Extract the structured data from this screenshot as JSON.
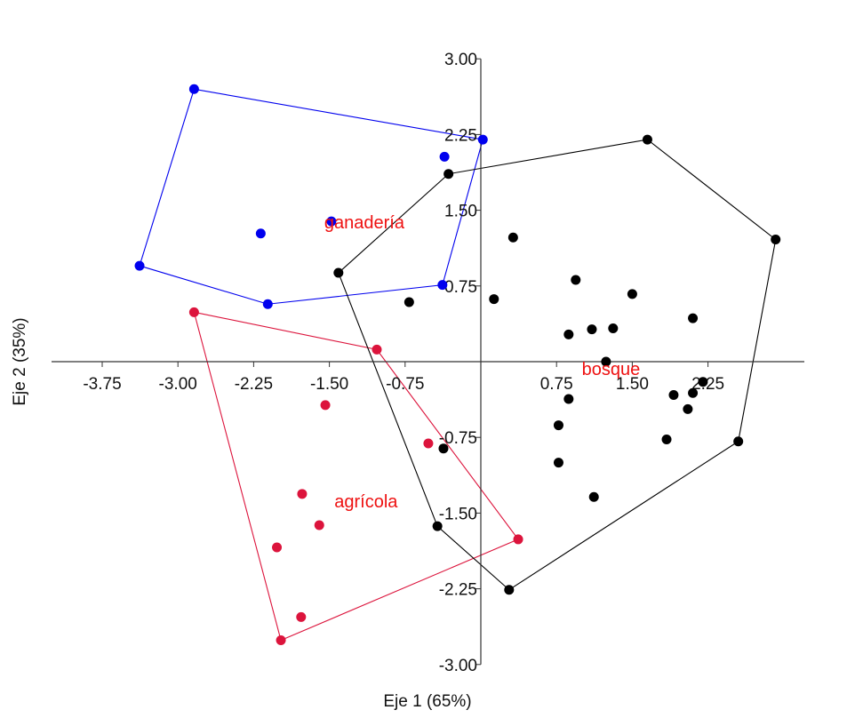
{
  "chart_data": {
    "type": "scatter",
    "xlabel": "Eje 1 (65%)",
    "ylabel": "Eje 2 (35%)",
    "xlim": [
      -4.25,
      3.2
    ],
    "ylim": [
      -3.0,
      3.0
    ],
    "x_ticks": [
      "-3.75",
      "-3.00",
      "-2.25",
      "-1.50",
      "-0.75",
      "0.75",
      "1.50",
      "2.25"
    ],
    "x_tick_values": [
      -3.75,
      -3.0,
      -2.25,
      -1.5,
      -0.75,
      0.75,
      1.5,
      2.25
    ],
    "y_ticks": [
      "3.00",
      "2.25",
      "1.50",
      "0.75",
      "-0.75",
      "-1.50",
      "-2.25",
      "-3.00"
    ],
    "y_tick_values": [
      3.0,
      2.25,
      1.5,
      0.75,
      -0.75,
      -1.5,
      -2.25,
      -3.0
    ],
    "grid": false,
    "axes_through_origin": true,
    "convex_hulls": true,
    "series": [
      {
        "name": "ganadería",
        "color": "#0000ee",
        "label_position": [
          -1.55,
          1.38
        ],
        "points": [
          [
            -2.84,
            2.7
          ],
          [
            -3.38,
            0.95
          ],
          [
            -2.11,
            0.57
          ],
          [
            -0.38,
            0.76
          ],
          [
            0.02,
            2.2
          ],
          [
            -2.18,
            1.27
          ],
          [
            -1.48,
            1.39
          ],
          [
            -0.36,
            2.03
          ]
        ],
        "hull": [
          [
            -2.84,
            2.7
          ],
          [
            0.02,
            2.2
          ],
          [
            -0.38,
            0.76
          ],
          [
            -2.11,
            0.57
          ],
          [
            -3.38,
            0.95
          ]
        ]
      },
      {
        "name": "agrícola",
        "color": "#dc143c",
        "label_position": [
          -1.45,
          -1.38
        ],
        "points": [
          [
            -2.84,
            0.49
          ],
          [
            -1.03,
            0.12
          ],
          [
            0.37,
            -1.76
          ],
          [
            -1.98,
            -2.76
          ],
          [
            -2.02,
            -1.84
          ],
          [
            -1.54,
            -0.43
          ],
          [
            -1.77,
            -1.31
          ],
          [
            -1.6,
            -1.62
          ],
          [
            -1.78,
            -2.53
          ],
          [
            -0.52,
            -0.81
          ]
        ],
        "hull": [
          [
            -2.84,
            0.49
          ],
          [
            -1.03,
            0.12
          ],
          [
            0.37,
            -1.76
          ],
          [
            -1.98,
            -2.76
          ]
        ]
      },
      {
        "name": "bosque",
        "color": "#000000",
        "label_position": [
          1.0,
          -0.07
        ],
        "points": [
          [
            -1.41,
            0.88
          ],
          [
            -0.32,
            1.86
          ],
          [
            1.65,
            2.2
          ],
          [
            2.92,
            1.21
          ],
          [
            2.55,
            -0.79
          ],
          [
            0.28,
            -2.26
          ],
          [
            -0.43,
            -1.63
          ],
          [
            0.32,
            1.23
          ],
          [
            0.13,
            0.62
          ],
          [
            -0.71,
            0.59
          ],
          [
            0.94,
            0.81
          ],
          [
            1.5,
            0.67
          ],
          [
            2.1,
            0.43
          ],
          [
            0.87,
            0.27
          ],
          [
            1.1,
            0.32
          ],
          [
            1.31,
            0.33
          ],
          [
            1.24,
            0.0
          ],
          [
            0.87,
            -0.37
          ],
          [
            1.91,
            -0.33
          ],
          [
            2.1,
            -0.31
          ],
          [
            2.2,
            -0.2
          ],
          [
            2.05,
            -0.47
          ],
          [
            1.84,
            -0.77
          ],
          [
            0.77,
            -0.63
          ],
          [
            0.77,
            -1.0
          ],
          [
            1.12,
            -1.34
          ],
          [
            -0.37,
            -0.86
          ]
        ],
        "hull": [
          [
            -1.41,
            0.88
          ],
          [
            -0.32,
            1.86
          ],
          [
            1.65,
            2.2
          ],
          [
            2.92,
            1.21
          ],
          [
            2.55,
            -0.79
          ],
          [
            0.28,
            -2.26
          ],
          [
            -0.43,
            -1.63
          ]
        ]
      }
    ]
  }
}
